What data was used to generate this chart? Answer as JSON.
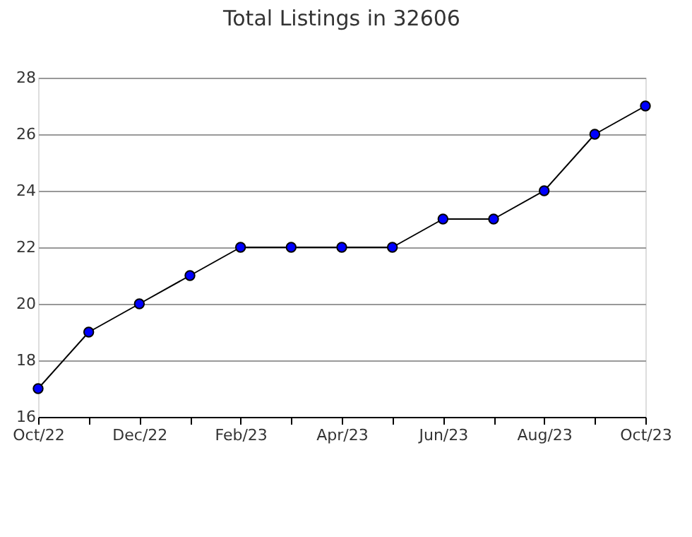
{
  "chart_data": {
    "type": "line",
    "title": "Total Listings in 32606",
    "categories": [
      "Oct/22",
      null,
      "Dec/22",
      null,
      "Feb/23",
      null,
      "Apr/23",
      null,
      "Jun/23",
      null,
      "Aug/23",
      null,
      "Oct/23"
    ],
    "series": [
      {
        "color": "#0000ff",
        "values": [
          17,
          19,
          20,
          21,
          22,
          22,
          22,
          22,
          23,
          23,
          24,
          26,
          27
        ]
      }
    ],
    "ylim": [
      16,
      28
    ],
    "yticks": [
      16,
      18,
      20,
      22,
      24,
      26,
      28
    ],
    "grid": "y",
    "marker": "circle",
    "line_style": "solid"
  }
}
